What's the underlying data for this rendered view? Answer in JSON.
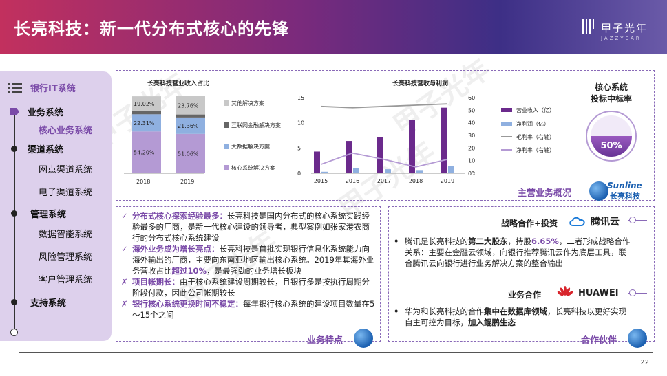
{
  "header": {
    "title": "长亮科技：新一代分布式核心的先锋",
    "logo_cn": "甲子光年",
    "logo_en": "JAZZYEAR"
  },
  "watermark": "甲子光年",
  "nav": {
    "head": "银行IT系统",
    "items": [
      {
        "label": "业务系统",
        "level": "main"
      },
      {
        "label": "核心业务系统",
        "level": "active"
      },
      {
        "label": "渠道系统",
        "level": "main"
      },
      {
        "label": "网点渠道系统",
        "level": "sub"
      },
      {
        "label": "电子渠道系统",
        "level": "sub"
      },
      {
        "label": "管理系统",
        "level": "main"
      },
      {
        "label": "数据智能系统",
        "level": "sub"
      },
      {
        "label": "风险管理系统",
        "level": "sub"
      },
      {
        "label": "客户管理系统",
        "level": "sub"
      },
      {
        "label": "支持系统",
        "level": "main"
      }
    ]
  },
  "overview": {
    "tag": "主营业务概况",
    "brand_en": "Sunline",
    "brand_cn": "长亮科技",
    "gauge": {
      "title_line1": "核心系统",
      "title_line2": "投标中标率",
      "value_label": "50%",
      "value": 0.5
    }
  },
  "chart_data": [
    {
      "type": "bar",
      "stacked": true,
      "title": "长亮科技营业收入占比",
      "categories": [
        "2018",
        "2019"
      ],
      "series": [
        {
          "name": "核心系统解决方案",
          "values": [
            54.2,
            51.06
          ],
          "labels": [
            "54.20%",
            "51.06%"
          ],
          "color": "#b49ad4"
        },
        {
          "name": "大数据解决方案",
          "values": [
            22.31,
            21.36
          ],
          "labels": [
            "22.31%",
            "21.36%"
          ],
          "color": "#8fb0e0"
        },
        {
          "name": "互联网金融解决方案",
          "values": [
            4.37,
            3.82
          ],
          "labels": [
            "",
            ""
          ],
          "color": "#666666"
        },
        {
          "name": "其他解决方案",
          "values": [
            19.02,
            23.76
          ],
          "labels": [
            "19.02%",
            "23.76%"
          ],
          "color": "#c8c8c8"
        }
      ],
      "ylim": [
        0,
        100
      ]
    },
    {
      "type": "bar",
      "title": "长亮科技营收与利润",
      "categories": [
        "2015",
        "2016",
        "2017",
        "2018",
        "2019"
      ],
      "y_ticks_left": [
        "0",
        "5",
        "10",
        "15"
      ],
      "y_ticks_right": [
        "0%",
        "10%",
        "20%",
        "30%",
        "40%",
        "50%",
        "60%"
      ],
      "ylim_left": [
        0,
        15
      ],
      "ylim_right": [
        0,
        60
      ],
      "series": [
        {
          "name": "营业收入（亿）",
          "type": "bar",
          "axis": "left",
          "values": [
            4.3,
            6.4,
            7.2,
            10.5,
            13.0
          ],
          "color": "#6b2a8c"
        },
        {
          "name": "净利润（亿）",
          "type": "bar",
          "axis": "left",
          "values": [
            0.3,
            1.0,
            0.8,
            0.5,
            1.4
          ],
          "color": "#8fb0e0"
        },
        {
          "name": "毛利率（右轴）",
          "type": "line",
          "axis": "right",
          "values": [
            53,
            52,
            53,
            54,
            55
          ],
          "color": "#999999"
        },
        {
          "name": "净利率（右轴）",
          "type": "line",
          "axis": "right",
          "values": [
            7,
            16,
            11,
            5,
            11
          ],
          "color": "#b49ad4"
        }
      ]
    }
  ],
  "features": {
    "tag": "业务特点",
    "items": [
      {
        "mark": "✓",
        "title": "分布式核心探索经验最多：",
        "text": "长亮科技是国内分布式的核心系统实践经验最多的厂商，是新一代核心建设的领导者，典型案例如张家港农商行的分布式核心系统建设",
        "extra_hl": "",
        "extra_after": ""
      },
      {
        "mark": "✓",
        "title": "海外业务成为增长亮点：",
        "text": "长亮科技是首批实现银行信息化系统能力向海外输出的厂商，主要向东南亚地区输出核心系统。2019年其海外业务营收占比",
        "extra_hl": "超过10%",
        "extra_after": "，是最强劲的业务增长板块"
      },
      {
        "mark": "✗",
        "title": "项目帐期长：",
        "text": "由于核心系统建设周期较长，且银行多是按执行周期分阶段付款，因此公司帐期较长",
        "extra_hl": "",
        "extra_after": ""
      },
      {
        "mark": "✗",
        "title": "银行核心系统更换时间不稳定：",
        "text": "每年银行核心系统的建设项目数量在5～15个之间",
        "extra_hl": "",
        "extra_after": ""
      }
    ]
  },
  "partners": {
    "tag": "合作伙伴",
    "tencent": {
      "heading": "战略合作+投资",
      "brand": "腾讯云",
      "p1": "腾讯是长亮科技的",
      "b1": "第二大股东",
      "p2": "，持股",
      "h1": "6.65%",
      "p3": "，二者形成战略合作关系：主要在金融云领域，向银行推荐腾讯云作为底层工具，联合腾讯云向银行进行业务解决方案的整合输出"
    },
    "huawei": {
      "heading": "业务合作",
      "brand": "HUAWEI",
      "p1": "华为和长亮科技的合作",
      "b1": "集中在数据库领域",
      "p2": "，长亮科技以更好实现自主可控为目标，",
      "b2": "加入鲲鹏生态"
    }
  },
  "page_number": "22"
}
